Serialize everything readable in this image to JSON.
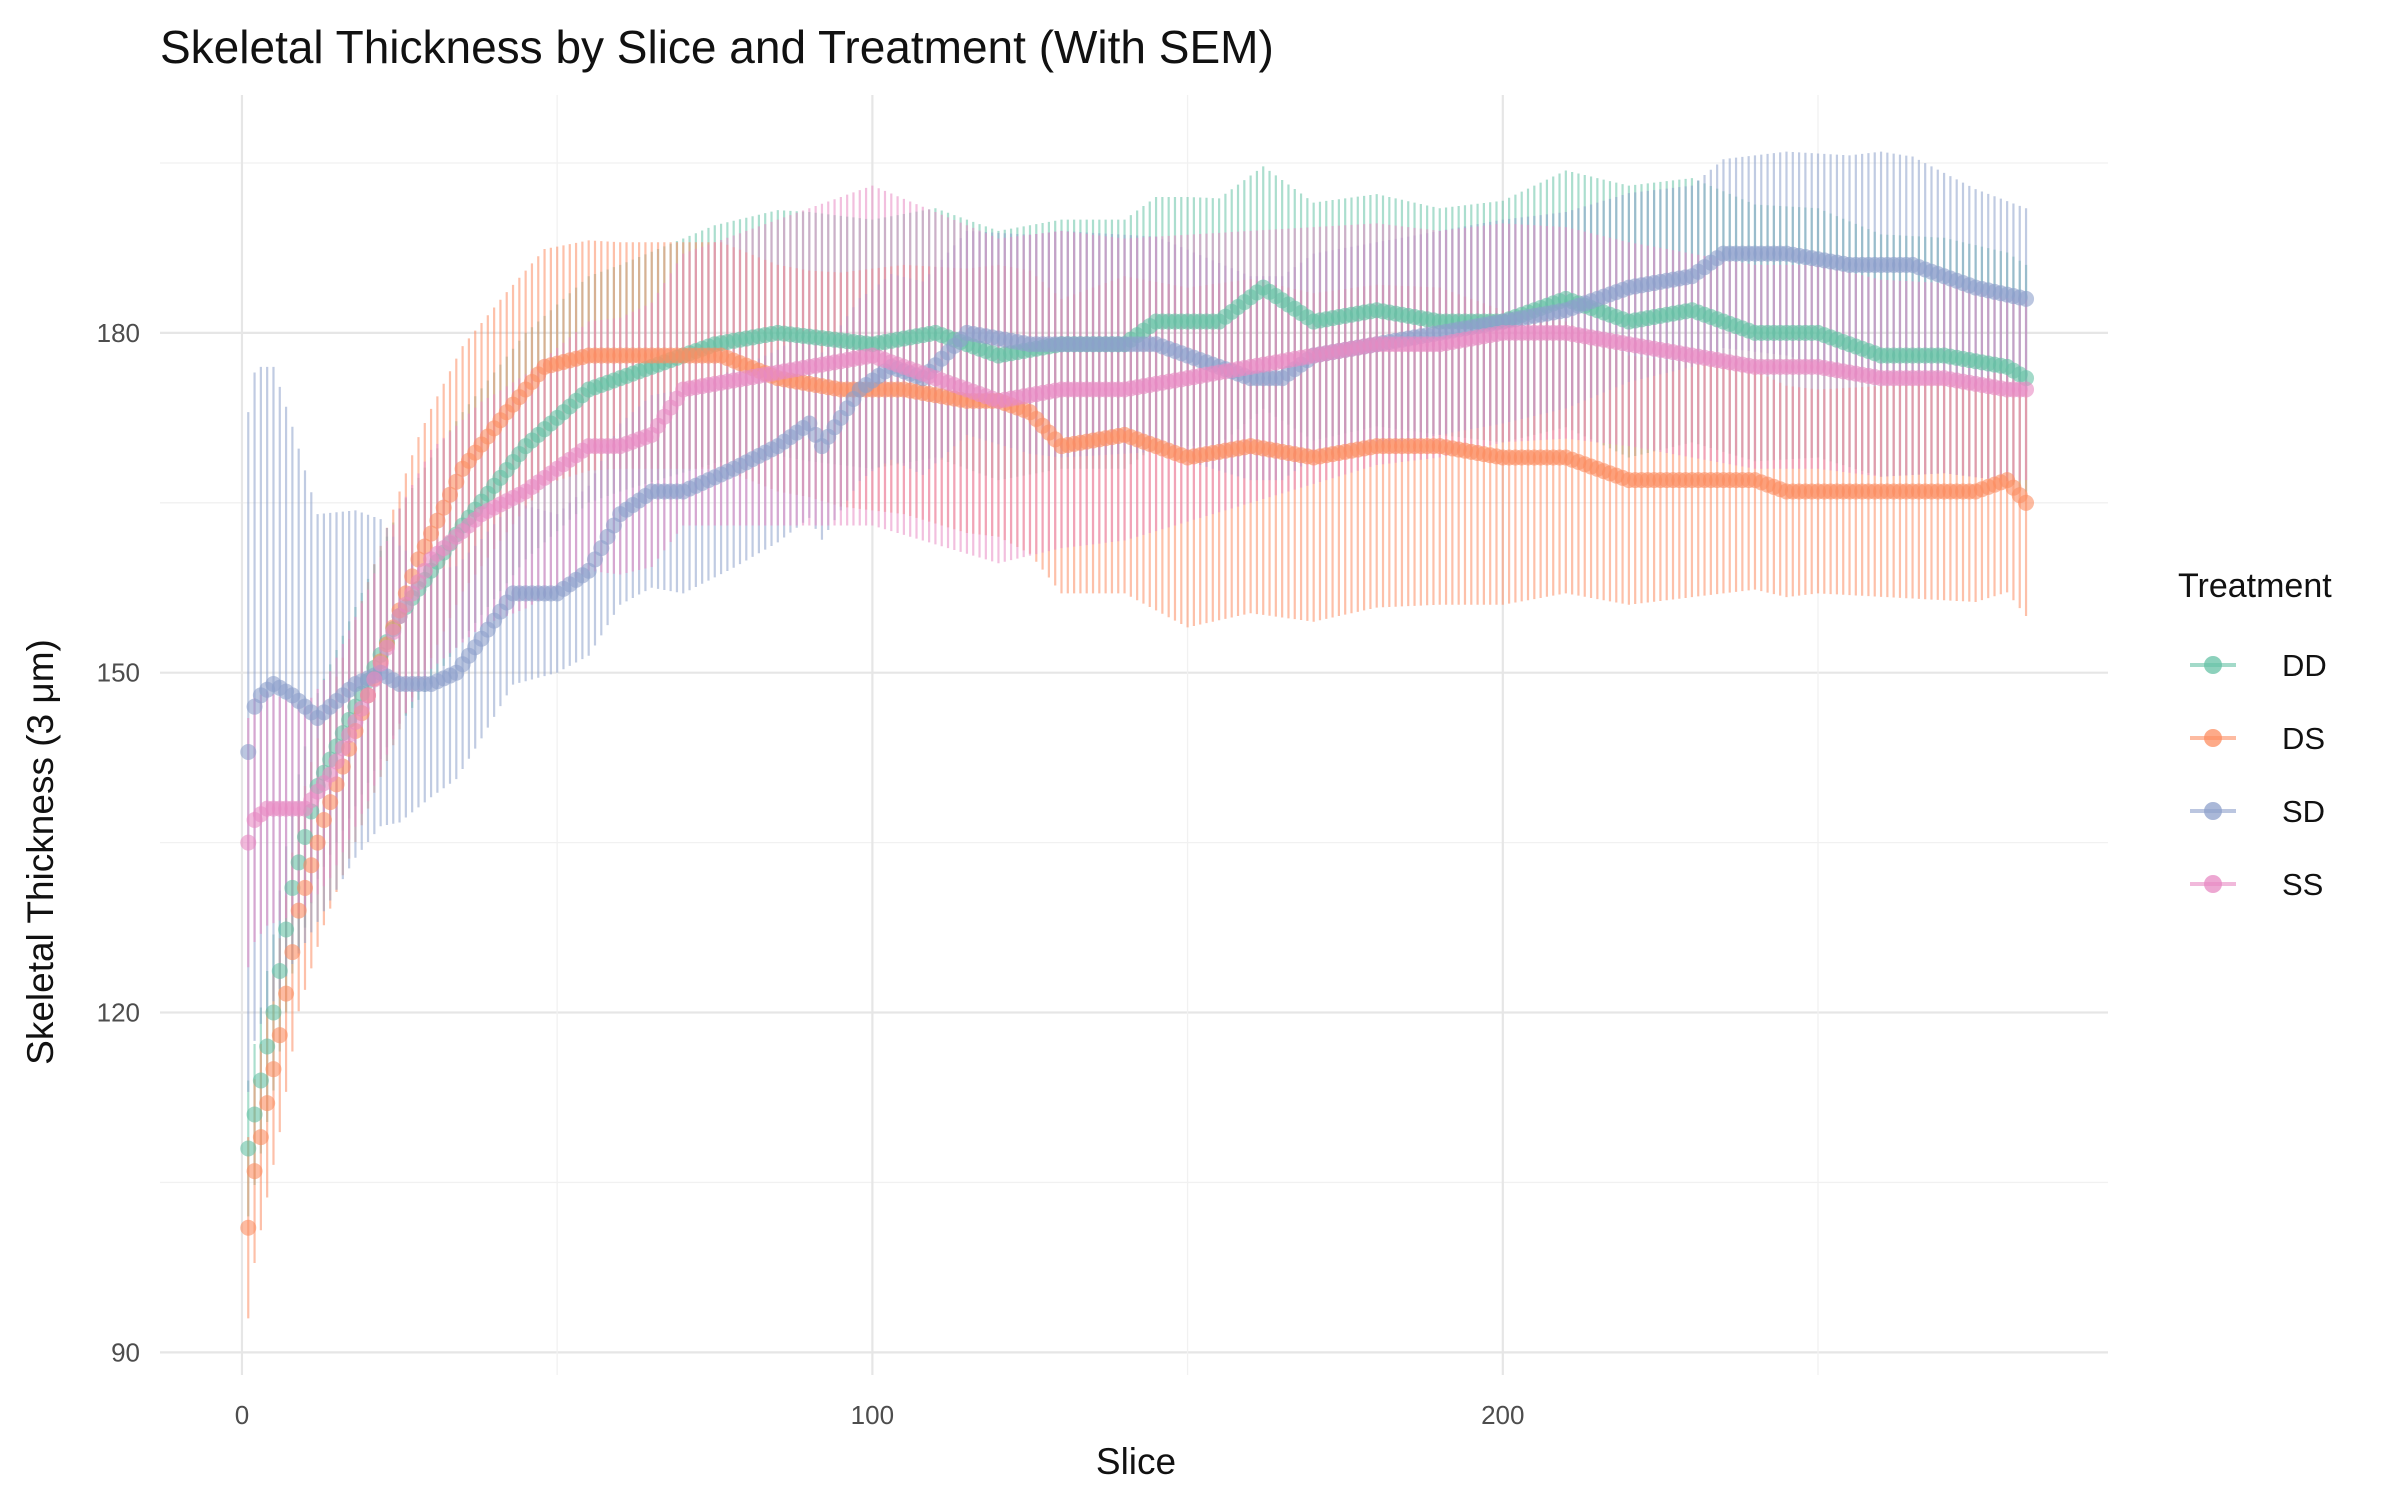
{
  "chart_data": {
    "type": "line",
    "title": "Skeletal Thickness by Slice and Treatment (With SEM)",
    "xlabel": "Slice",
    "ylabel": "Skeletal Thickness (3 μm)",
    "xlim": [
      -13,
      296
    ],
    "ylim": [
      88,
      201
    ],
    "x_ticks": [
      0,
      100,
      200
    ],
    "y_ticks": [
      90,
      120,
      150,
      180
    ],
    "grid": true,
    "legend": {
      "title": "Treatment",
      "position": "right"
    },
    "error_bars": "SEM",
    "keypoints": {
      "DD": [
        [
          1,
          108
        ],
        [
          3,
          114
        ],
        [
          5,
          120
        ],
        [
          8,
          131
        ],
        [
          12,
          140
        ],
        [
          18,
          147
        ],
        [
          25,
          155
        ],
        [
          35,
          163
        ],
        [
          45,
          170
        ],
        [
          55,
          175
        ],
        [
          65,
          177
        ],
        [
          75,
          179
        ],
        [
          85,
          180
        ],
        [
          100,
          179
        ],
        [
          110,
          180
        ],
        [
          120,
          178
        ],
        [
          130,
          179
        ],
        [
          140,
          179
        ],
        [
          145,
          181
        ],
        [
          155,
          181
        ],
        [
          162,
          184
        ],
        [
          170,
          181
        ],
        [
          180,
          182
        ],
        [
          190,
          181
        ],
        [
          200,
          181
        ],
        [
          210,
          183
        ],
        [
          220,
          181
        ],
        [
          230,
          182
        ],
        [
          240,
          180
        ],
        [
          250,
          180
        ],
        [
          260,
          178
        ],
        [
          270,
          178
        ],
        [
          280,
          177
        ],
        [
          283,
          176
        ]
      ],
      "DS": [
        [
          1,
          101
        ],
        [
          2,
          106
        ],
        [
          4,
          112
        ],
        [
          6,
          118
        ],
        [
          9,
          129
        ],
        [
          13,
          137
        ],
        [
          20,
          148
        ],
        [
          28,
          160
        ],
        [
          35,
          168
        ],
        [
          42,
          173
        ],
        [
          48,
          177
        ],
        [
          55,
          178
        ],
        [
          62,
          178
        ],
        [
          70,
          178
        ],
        [
          76,
          178
        ],
        [
          85,
          176
        ],
        [
          95,
          175
        ],
        [
          105,
          175
        ],
        [
          115,
          174
        ],
        [
          120,
          174
        ],
        [
          125,
          173
        ],
        [
          130,
          170
        ],
        [
          140,
          171
        ],
        [
          150,
          169
        ],
        [
          160,
          170
        ],
        [
          170,
          169
        ],
        [
          180,
          170
        ],
        [
          190,
          170
        ],
        [
          200,
          169
        ],
        [
          210,
          169
        ],
        [
          220,
          167
        ],
        [
          230,
          167
        ],
        [
          240,
          167
        ],
        [
          245,
          166
        ],
        [
          255,
          166
        ],
        [
          265,
          166
        ],
        [
          275,
          166
        ],
        [
          280,
          167
        ],
        [
          283,
          165
        ]
      ],
      "SD": [
        [
          1,
          143
        ],
        [
          2,
          147
        ],
        [
          3,
          148
        ],
        [
          5,
          149
        ],
        [
          8,
          148
        ],
        [
          12,
          146
        ],
        [
          18,
          149
        ],
        [
          22,
          150
        ],
        [
          25,
          149
        ],
        [
          30,
          149
        ],
        [
          34,
          150
        ],
        [
          38,
          153
        ],
        [
          43,
          157
        ],
        [
          50,
          157
        ],
        [
          55,
          159
        ],
        [
          60,
          164
        ],
        [
          65,
          166
        ],
        [
          70,
          166
        ],
        [
          78,
          168
        ],
        [
          85,
          170
        ],
        [
          90,
          172
        ],
        [
          92,
          170
        ],
        [
          98,
          175
        ],
        [
          103,
          177
        ],
        [
          108,
          176
        ],
        [
          115,
          180
        ],
        [
          125,
          179
        ],
        [
          135,
          179
        ],
        [
          145,
          179
        ],
        [
          150,
          178
        ],
        [
          155,
          177
        ],
        [
          160,
          176
        ],
        [
          165,
          176
        ],
        [
          170,
          178
        ],
        [
          180,
          179
        ],
        [
          190,
          180
        ],
        [
          200,
          181
        ],
        [
          210,
          182
        ],
        [
          220,
          184
        ],
        [
          230,
          185
        ],
        [
          235,
          187
        ],
        [
          245,
          187
        ],
        [
          255,
          186
        ],
        [
          265,
          186
        ],
        [
          275,
          184
        ],
        [
          283,
          183
        ]
      ],
      "SS": [
        [
          1,
          135
        ],
        [
          2,
          137
        ],
        [
          4,
          138
        ],
        [
          7,
          138
        ],
        [
          10,
          138
        ],
        [
          14,
          141
        ],
        [
          20,
          148
        ],
        [
          25,
          155
        ],
        [
          30,
          160
        ],
        [
          38,
          164
        ],
        [
          45,
          166
        ],
        [
          50,
          168
        ],
        [
          55,
          170
        ],
        [
          60,
          170
        ],
        [
          65,
          171
        ],
        [
          70,
          175
        ],
        [
          80,
          176
        ],
        [
          90,
          177
        ],
        [
          100,
          178
        ],
        [
          110,
          176
        ],
        [
          120,
          174
        ],
        [
          130,
          175
        ],
        [
          140,
          175
        ],
        [
          150,
          176
        ],
        [
          160,
          177
        ],
        [
          170,
          178
        ],
        [
          180,
          179
        ],
        [
          190,
          179
        ],
        [
          200,
          180
        ],
        [
          210,
          180
        ],
        [
          220,
          179
        ],
        [
          230,
          178
        ],
        [
          240,
          177
        ],
        [
          250,
          177
        ],
        [
          260,
          176
        ],
        [
          270,
          176
        ],
        [
          280,
          175
        ],
        [
          283,
          175
        ]
      ]
    },
    "sem_keypoints": {
      "DD": [
        [
          1,
          6
        ],
        [
          10,
          8
        ],
        [
          30,
          10
        ],
        [
          60,
          10
        ],
        [
          90,
          11
        ],
        [
          120,
          11
        ],
        [
          150,
          11
        ],
        [
          190,
          10
        ],
        [
          220,
          12
        ],
        [
          250,
          11
        ],
        [
          283,
          10
        ]
      ],
      "DS": [
        [
          1,
          8
        ],
        [
          10,
          9
        ],
        [
          30,
          11
        ],
        [
          60,
          10
        ],
        [
          90,
          10
        ],
        [
          120,
          12
        ],
        [
          150,
          15
        ],
        [
          190,
          14
        ],
        [
          220,
          11
        ],
        [
          250,
          9
        ],
        [
          283,
          10
        ]
      ],
      "SD": [
        [
          1,
          30
        ],
        [
          5,
          28
        ],
        [
          12,
          18
        ],
        [
          30,
          10
        ],
        [
          50,
          7
        ],
        [
          70,
          9
        ],
        [
          100,
          8
        ],
        [
          130,
          10
        ],
        [
          160,
          9
        ],
        [
          200,
          9
        ],
        [
          230,
          8
        ],
        [
          260,
          10
        ],
        [
          283,
          8
        ]
      ],
      "SS": [
        [
          1,
          11
        ],
        [
          10,
          9
        ],
        [
          40,
          10
        ],
        [
          70,
          12
        ],
        [
          100,
          15
        ],
        [
          130,
          14
        ],
        [
          160,
          12
        ],
        [
          190,
          10
        ],
        [
          220,
          9
        ],
        [
          250,
          9
        ],
        [
          283,
          8
        ]
      ]
    },
    "series": [
      {
        "name": "DD",
        "color": "#66C2A5"
      },
      {
        "name": "DS",
        "color": "#FC8D62"
      },
      {
        "name": "SD",
        "color": "#8DA0CB"
      },
      {
        "name": "SS",
        "color": "#E78AC3"
      }
    ]
  }
}
